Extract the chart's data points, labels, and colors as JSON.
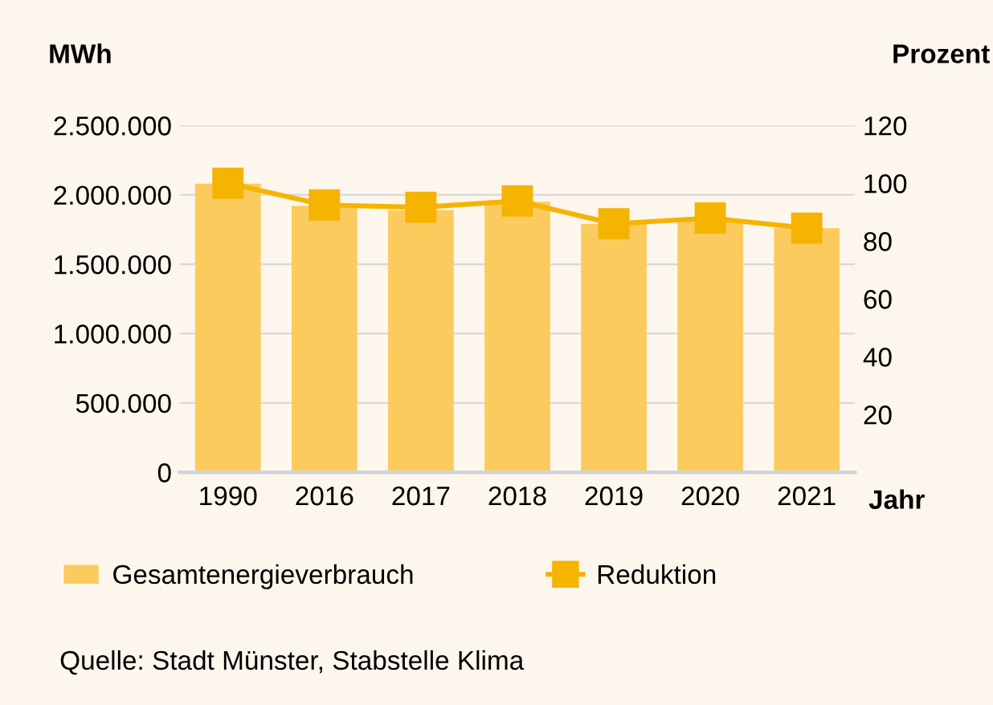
{
  "chart_data": {
    "type": "bar",
    "categories": [
      "1990",
      "2016",
      "2017",
      "2018",
      "2019",
      "2020",
      "2021"
    ],
    "series": [
      {
        "name": "Gesamtenergieverbrauch",
        "color": "#fccb5e",
        "values": [
          2080000,
          1920000,
          1890000,
          1950000,
          1790000,
          1820000,
          1760000
        ]
      },
      {
        "name": "Reduktion",
        "type": "line",
        "axis": "y2",
        "color": "#f5b400",
        "marker": "square",
        "values": [
          100,
          92.5,
          91.7,
          93.9,
          86,
          88,
          84.5
        ]
      }
    ],
    "ylabel": "MWh",
    "y2label": "Prozent",
    "xlabel": "Jahr",
    "ylim": [
      0,
      2500000
    ],
    "yticks": [
      {
        "value": 0,
        "label": "0"
      },
      {
        "value": 500000,
        "label": "500.000"
      },
      {
        "value": 1000000,
        "label": "1.000.000"
      },
      {
        "value": 1500000,
        "label": "1.500.000"
      },
      {
        "value": 2000000,
        "label": "2.000.000"
      },
      {
        "value": 2500000,
        "label": "2.500.000"
      }
    ],
    "y2lim": [
      0,
      120
    ],
    "y2ticks": [
      20,
      40,
      60,
      80,
      100,
      120
    ],
    "grid": "y",
    "legend": "bottom",
    "annotations": [
      "Quelle: Stadt Münster, Stabstelle Klima"
    ]
  }
}
